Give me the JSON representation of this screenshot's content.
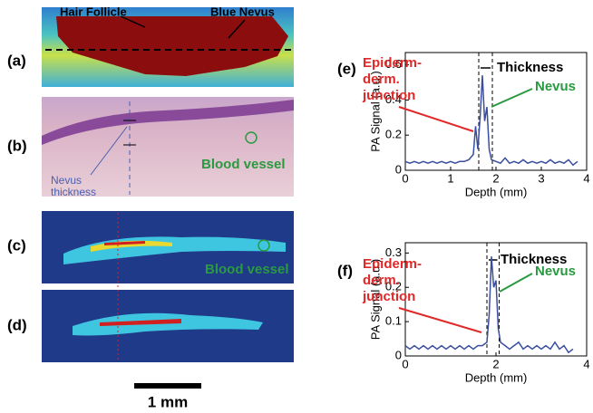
{
  "figure": {
    "panel_labels": [
      "(a)",
      "(b)",
      "(c)",
      "(d)",
      "(e)",
      "(f)"
    ],
    "hair_follicle": "Hair Follicle",
    "blue_nevus": "Blue Nevus",
    "nevus_thickness": [
      "Nevus",
      "thickness"
    ],
    "blood_vessel_b": "Blood vessel",
    "blood_vessel_c": "Blood vessel",
    "scale_bar": "1 mm"
  },
  "chart_data": [
    {
      "type": "line",
      "xlabel": "Depth (mm)",
      "ylabel": "PA Signal (a.u.)",
      "xlim": [
        0,
        4
      ],
      "xticks": [
        0,
        1,
        2,
        3,
        4
      ],
      "ylim": [
        0,
        0.67
      ],
      "yticks": [
        0,
        0.2,
        0.4,
        0.6
      ],
      "junction_label": [
        "Epiderm-",
        "derm.",
        "junction"
      ],
      "nevus_label": "Nevus",
      "thickness_label": "Thickness",
      "markers": [
        1.62,
        1.92
      ],
      "series": [
        {
          "color": "#3a4ea0",
          "x": [
            0,
            0.1,
            0.2,
            0.3,
            0.4,
            0.5,
            0.6,
            0.7,
            0.8,
            0.9,
            1.0,
            1.1,
            1.2,
            1.3,
            1.4,
            1.5,
            1.55,
            1.6,
            1.65,
            1.7,
            1.75,
            1.8,
            1.85,
            1.9,
            2.0,
            2.1,
            2.2,
            2.3,
            2.4,
            2.5,
            2.6,
            2.7,
            2.8,
            2.9,
            3.0,
            3.1,
            3.2,
            3.3,
            3.4,
            3.5,
            3.6,
            3.7,
            3.8
          ],
          "values": [
            0.05,
            0.04,
            0.05,
            0.04,
            0.05,
            0.04,
            0.05,
            0.04,
            0.05,
            0.04,
            0.05,
            0.04,
            0.05,
            0.05,
            0.06,
            0.09,
            0.25,
            0.12,
            0.3,
            0.54,
            0.28,
            0.36,
            0.12,
            0.06,
            0.05,
            0.04,
            0.07,
            0.04,
            0.05,
            0.04,
            0.06,
            0.04,
            0.05,
            0.04,
            0.05,
            0.04,
            0.06,
            0.04,
            0.05,
            0.04,
            0.06,
            0.03,
            0.05
          ]
        }
      ]
    },
    {
      "type": "line",
      "xlabel": "Depth (mm)",
      "ylabel": "PA Signal (a.u.)",
      "xlim": [
        0,
        4
      ],
      "xticks": [
        0,
        2,
        4
      ],
      "ylim": [
        0,
        0.33
      ],
      "yticks": [
        0,
        0.1,
        0.2,
        0.3
      ],
      "junction_label": [
        "Epiderm-",
        "derm.",
        "junction"
      ],
      "nevus_label": "Nevus",
      "thickness_label": "Thickness",
      "markers": [
        1.8,
        2.07
      ],
      "series": [
        {
          "color": "#3a4ea0",
          "x": [
            0,
            0.1,
            0.2,
            0.3,
            0.4,
            0.5,
            0.6,
            0.7,
            0.8,
            0.9,
            1.0,
            1.1,
            1.2,
            1.3,
            1.4,
            1.5,
            1.6,
            1.7,
            1.8,
            1.85,
            1.9,
            1.95,
            2.0,
            2.05,
            2.1,
            2.2,
            2.3,
            2.4,
            2.5,
            2.6,
            2.7,
            2.8,
            2.9,
            3.0,
            3.1,
            3.2,
            3.3,
            3.4,
            3.5,
            3.6,
            3.7
          ],
          "values": [
            0.03,
            0.02,
            0.03,
            0.02,
            0.03,
            0.02,
            0.03,
            0.02,
            0.03,
            0.02,
            0.03,
            0.02,
            0.03,
            0.02,
            0.03,
            0.02,
            0.03,
            0.03,
            0.04,
            0.12,
            0.29,
            0.2,
            0.22,
            0.08,
            0.04,
            0.03,
            0.02,
            0.03,
            0.04,
            0.02,
            0.03,
            0.02,
            0.03,
            0.02,
            0.03,
            0.02,
            0.04,
            0.02,
            0.03,
            0.01,
            0.02
          ]
        }
      ]
    }
  ]
}
